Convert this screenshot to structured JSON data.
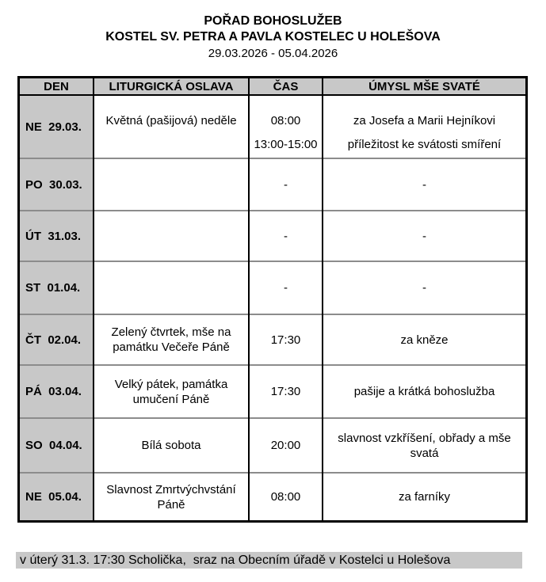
{
  "header": {
    "title": "POŘAD BOHOSLUŽEB",
    "subtitle": "KOSTEL SV. PETRA A PAVLA KOSTELEC U HOLEŠOVA",
    "date_range": "29.03.2026 - 05.04.2026"
  },
  "table": {
    "headers": [
      "DEN",
      "LITURGICKÁ OSLAVA",
      "ČAS",
      "ÚMYSL MŠE SVATÉ"
    ],
    "rows": [
      {
        "day": "NE  29.03.",
        "liturgy": [
          "Květná (pašijová) neděle",
          ""
        ],
        "times": [
          "08:00",
          "13:00-15:00"
        ],
        "intents": [
          "za Josefa a Marii Hejníkovi",
          "příležitost ke svátosti smíření"
        ]
      },
      {
        "day": "PO  30.03.",
        "liturgy": [
          ""
        ],
        "times": [
          "-"
        ],
        "intents": [
          "-"
        ]
      },
      {
        "day": "ÚT  31.03.",
        "liturgy": [
          ""
        ],
        "times": [
          "-"
        ],
        "intents": [
          "-"
        ]
      },
      {
        "day": "ST  01.04.",
        "liturgy": [
          ""
        ],
        "times": [
          "-"
        ],
        "intents": [
          "-"
        ]
      },
      {
        "day": "ČT  02.04.",
        "liturgy": [
          "Zelený čtvrtek, mše na památku Večeře Páně"
        ],
        "times": [
          "17:30"
        ],
        "intents": [
          "za kněze"
        ]
      },
      {
        "day": "PÁ  03.04.",
        "liturgy": [
          "Velký pátek, památka umučení Páně"
        ],
        "times": [
          "17:30"
        ],
        "intents": [
          "pašije a krátká bohoslužba"
        ]
      },
      {
        "day": "SO  04.04.",
        "liturgy": [
          "Bílá sobota"
        ],
        "times": [
          "20:00"
        ],
        "intents": [
          "slavnost vzkříšení, obřady a mše svatá"
        ]
      },
      {
        "day": "NE  05.04.",
        "liturgy": [
          "Slavnost Zmrtvýchvstání Páně"
        ],
        "times": [
          "08:00"
        ],
        "intents": [
          "za farníky"
        ]
      }
    ]
  },
  "footer": {
    "note": "v úterý 31.3. 17:30 Scholička,  sraz na Obecním úřadě v Kostelci u Holešova"
  },
  "colors": {
    "cell_gray": "#c8c8c8",
    "table_border": "#000000",
    "row_separator": "#8c8c8c",
    "text": "#000000",
    "page_bg": "#ffffff"
  }
}
